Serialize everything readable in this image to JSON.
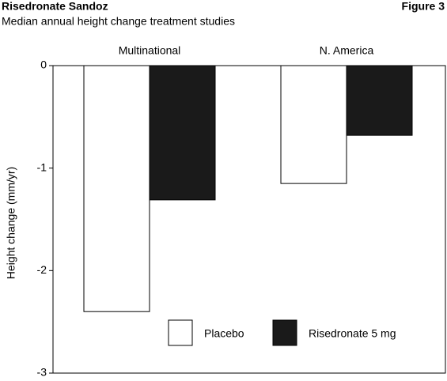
{
  "chart_data": {
    "type": "bar",
    "title": "Risedronate Sandoz",
    "figure_label": "Figure 3",
    "subtitle": "Median annual height change treatment studies",
    "y_label": "Height change (mm/yr)",
    "categories": [
      "Multinational",
      "N. America"
    ],
    "series": [
      {
        "name": "Placebo",
        "color": "#ffffff",
        "values": [
          -2.4,
          -1.15
        ]
      },
      {
        "name": "Risedronate 5 mg",
        "color": "#1a1a1a",
        "values": [
          -1.31,
          -0.68
        ]
      }
    ],
    "ylim": [
      -3,
      0
    ],
    "yticks": [
      0,
      -1,
      -2,
      -3
    ]
  }
}
